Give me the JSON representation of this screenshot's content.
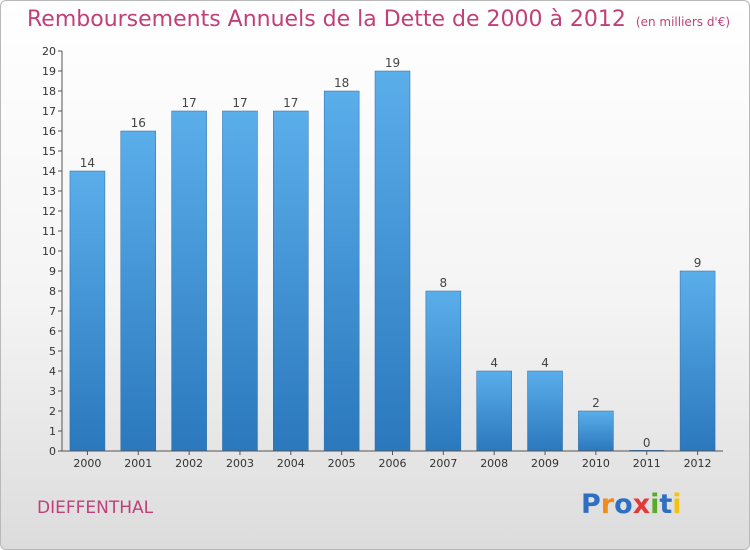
{
  "title": "Remboursements Annuels de la Dette de 2000 à 2012",
  "unit": "(en milliers d'€)",
  "place": "DIEFFENTHAL",
  "logo": {
    "text": "Proxiti",
    "letters": [
      {
        "ch": "P",
        "color": "#2f6fc2"
      },
      {
        "ch": "r",
        "color": "#f08a1c"
      },
      {
        "ch": "o",
        "color": "#2f6fc2"
      },
      {
        "ch": "x",
        "color": "#e23a3a"
      },
      {
        "ch": "i",
        "color": "#5aaa2a"
      },
      {
        "ch": "t",
        "color": "#2f6fc2"
      },
      {
        "ch": "i",
        "color": "#f2c20c"
      }
    ]
  },
  "chart_data": {
    "type": "bar",
    "title": "Remboursements Annuels de la Dette de 2000 à 2012",
    "categories": [
      "2000",
      "2001",
      "2002",
      "2003",
      "2004",
      "2005",
      "2006",
      "2007",
      "2008",
      "2009",
      "2010",
      "2011",
      "2012"
    ],
    "values": [
      14,
      16,
      17,
      17,
      17,
      18,
      19,
      8,
      4,
      4,
      2,
      0,
      9
    ],
    "ylim": [
      0,
      20
    ],
    "yticks": [
      0,
      1,
      2,
      3,
      4,
      5,
      6,
      7,
      8,
      9,
      10,
      11,
      12,
      13,
      14,
      15,
      16,
      17,
      18,
      19,
      20
    ],
    "grid": false,
    "bar_color_top": "#5aaeea",
    "bar_color_bottom": "#2b78bd"
  }
}
